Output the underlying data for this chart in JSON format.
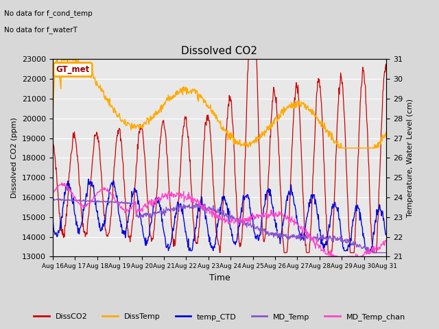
{
  "title": "Dissolved CO2",
  "subtitle_lines": [
    "No data for f_cond_temp",
    "No data for f_waterT"
  ],
  "xlabel": "Time",
  "ylabel_left": "Dissolved CO2 (ppm)",
  "ylabel_right": "Temperature, Water Level (cm)",
  "ylim_left": [
    13000,
    23000
  ],
  "ylim_right": [
    21.0,
    31.0
  ],
  "yticks_left": [
    13000,
    14000,
    15000,
    16000,
    17000,
    18000,
    19000,
    20000,
    21000,
    22000,
    23000
  ],
  "yticks_right": [
    21.0,
    22.0,
    23.0,
    24.0,
    25.0,
    26.0,
    27.0,
    28.0,
    29.0,
    30.0,
    31.0
  ],
  "xtick_labels": [
    "Aug 16",
    "Aug 17",
    "Aug 18",
    "Aug 19",
    "Aug 20",
    "Aug 21",
    "Aug 22",
    "Aug 23",
    "Aug 24",
    "Aug 25",
    "Aug 26",
    "Aug 27",
    "Aug 28",
    "Aug 29",
    "Aug 30",
    "Aug 31"
  ],
  "legend_entries": [
    "DissCO2",
    "DissTemp",
    "temp_CTD",
    "MD_Temp",
    "MD_Temp_chan"
  ],
  "legend_colors": [
    "#cc0000",
    "#ffaa00",
    "#0000dd",
    "#8855cc",
    "#ff44cc"
  ],
  "gt_met_box_color": "#ffaa00",
  "gt_met_text": "GT_met",
  "background_color": "#d8d8d8",
  "plot_bg_color": "#e8e8e8",
  "grid_color": "#ffffff",
  "figwidth": 6.4,
  "figheight": 4.8,
  "dpi": 100
}
